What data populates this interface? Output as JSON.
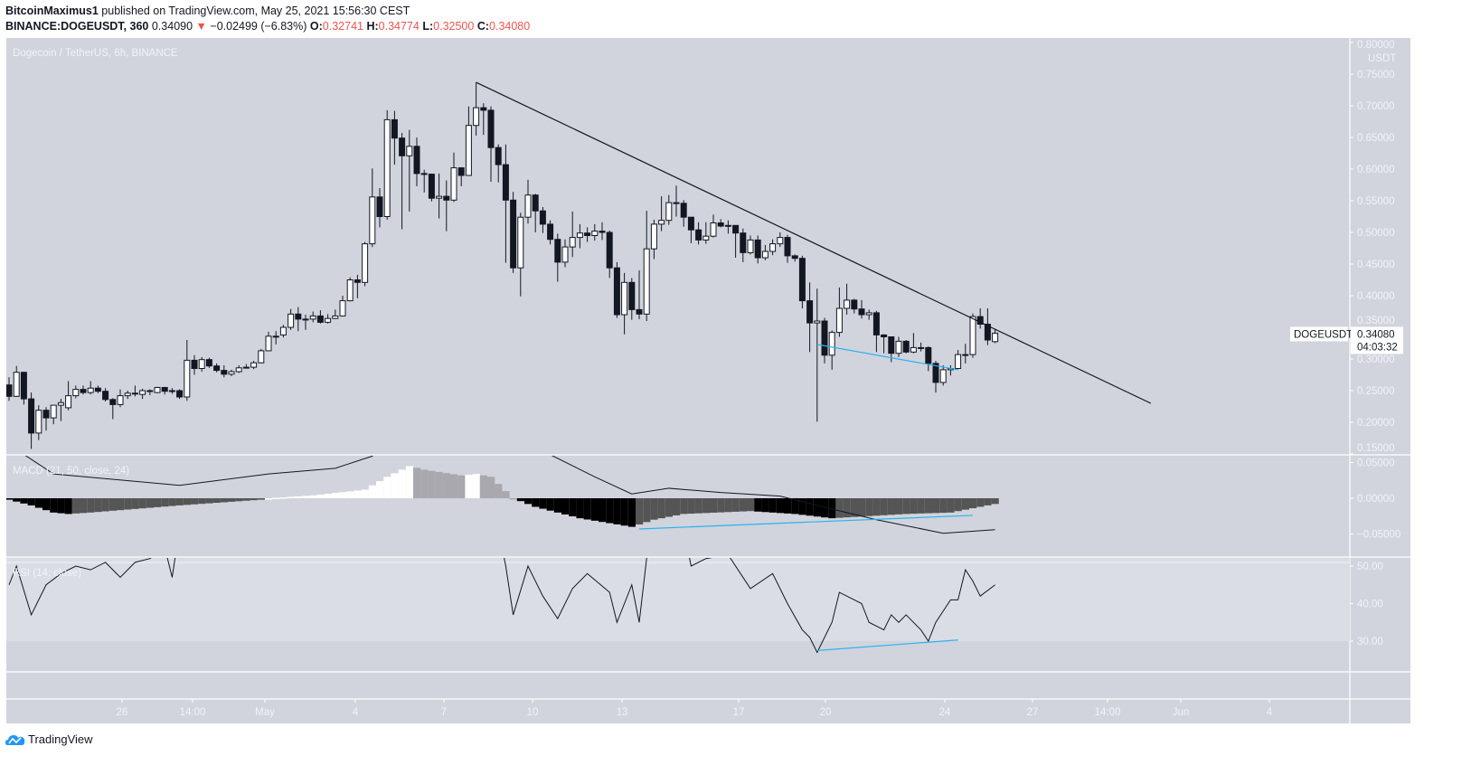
{
  "header": {
    "author": "BitcoinMaximus1",
    "published": "published on TradingView.com, May 25, 2021 15:56:30 CEST",
    "symbol": "BINANCE:DOGEUSDT, 360",
    "last": "0.34090",
    "change": "−0.02499 (−6.83%)",
    "o_label": "O:",
    "o": "0.32741",
    "h_label": "H:",
    "h": "0.34774",
    "l_label": "L:",
    "l": "0.32500",
    "c_label": "C:",
    "c": "0.34080"
  },
  "logo_text": "TradingView",
  "colors": {
    "background": "#d1d4dc",
    "up": "#ffffff",
    "down": "#131722",
    "accent_line": "#2ab3f0",
    "down_text": "#ef5350",
    "hist_falling": "#000000",
    "hist_rising_neg": "#555555",
    "hist_rising_pos": "#ffffff",
    "hist_falling_pos": "#a8a8ae"
  },
  "chart_data": [
    {
      "type": "candlestick",
      "title": "Dogecoin / TetherUS, 6h, BINANCE",
      "ylabel": "USDT",
      "ylim": [
        0.15,
        0.8
      ],
      "y_ticks": [
        "0.80000",
        "0.75000",
        "0.70000",
        "0.65000",
        "0.60000",
        "0.55000",
        "0.50000",
        "0.45000",
        "0.40000",
        "0.35000",
        "0.30000",
        "0.25000",
        "0.20000",
        "0.15000"
      ],
      "x_ticks": [
        "26",
        "14:00",
        "May",
        "4",
        "7",
        "10",
        "13",
        "17",
        "20",
        "24",
        "27",
        "14:00",
        "Jun",
        "4"
      ],
      "last_price_label": {
        "symbol": "DOGEUSDT",
        "price": "0.34080",
        "countdown": "04:03:32"
      },
      "ohlc": [
        [
          0.259,
          0.271,
          0.234,
          0.241
        ],
        [
          0.241,
          0.289,
          0.24,
          0.279
        ],
        [
          0.279,
          0.279,
          0.228,
          0.237
        ],
        [
          0.237,
          0.247,
          0.158,
          0.183
        ],
        [
          0.183,
          0.227,
          0.172,
          0.219
        ],
        [
          0.219,
          0.224,
          0.187,
          0.207
        ],
        [
          0.207,
          0.227,
          0.197,
          0.227
        ],
        [
          0.227,
          0.237,
          0.202,
          0.231
        ],
        [
          0.223,
          0.265,
          0.219,
          0.242
        ],
        [
          0.242,
          0.258,
          0.238,
          0.252
        ],
        [
          0.252,
          0.258,
          0.244,
          0.247
        ],
        [
          0.247,
          0.265,
          0.244,
          0.254
        ],
        [
          0.254,
          0.258,
          0.246,
          0.249
        ],
        [
          0.249,
          0.254,
          0.233,
          0.236
        ],
        [
          0.236,
          0.238,
          0.205,
          0.228
        ],
        [
          0.228,
          0.252,
          0.224,
          0.242
        ],
        [
          0.242,
          0.25,
          0.237,
          0.246
        ],
        [
          0.246,
          0.258,
          0.241,
          0.246
        ],
        [
          0.244,
          0.253,
          0.237,
          0.25
        ],
        [
          0.25,
          0.252,
          0.243,
          0.249
        ],
        [
          0.247,
          0.256,
          0.246,
          0.255
        ],
        [
          0.255,
          0.256,
          0.244,
          0.249
        ],
        [
          0.249,
          0.254,
          0.245,
          0.25
        ],
        [
          0.25,
          0.252,
          0.237,
          0.24
        ],
        [
          0.24,
          0.33,
          0.234,
          0.298
        ],
        [
          0.298,
          0.306,
          0.275,
          0.285
        ],
        [
          0.285,
          0.303,
          0.28,
          0.299
        ],
        [
          0.299,
          0.302,
          0.286,
          0.289
        ],
        [
          0.289,
          0.293,
          0.279,
          0.282
        ],
        [
          0.282,
          0.29,
          0.271,
          0.276
        ],
        [
          0.276,
          0.283,
          0.273,
          0.28
        ],
        [
          0.28,
          0.29,
          0.278,
          0.286
        ],
        [
          0.286,
          0.292,
          0.285,
          0.287
        ],
        [
          0.287,
          0.297,
          0.284,
          0.294
        ],
        [
          0.294,
          0.316,
          0.293,
          0.313
        ],
        [
          0.313,
          0.343,
          0.316,
          0.336
        ],
        [
          0.336,
          0.344,
          0.323,
          0.336
        ],
        [
          0.338,
          0.354,
          0.334,
          0.35
        ],
        [
          0.35,
          0.379,
          0.346,
          0.371
        ],
        [
          0.371,
          0.382,
          0.344,
          0.363
        ],
        [
          0.363,
          0.37,
          0.346,
          0.363
        ],
        [
          0.363,
          0.375,
          0.358,
          0.368
        ],
        [
          0.368,
          0.377,
          0.356,
          0.358
        ],
        [
          0.358,
          0.371,
          0.356,
          0.364
        ],
        [
          0.364,
          0.378,
          0.363,
          0.368
        ],
        [
          0.368,
          0.4,
          0.367,
          0.392
        ],
        [
          0.392,
          0.429,
          0.391,
          0.425
        ],
        [
          0.425,
          0.433,
          0.396,
          0.421
        ],
        [
          0.421,
          0.485,
          0.415,
          0.482
        ],
        [
          0.482,
          0.601,
          0.477,
          0.556
        ],
        [
          0.556,
          0.57,
          0.508,
          0.525
        ],
        [
          0.525,
          0.693,
          0.52,
          0.678
        ],
        [
          0.678,
          0.692,
          0.607,
          0.649
        ],
        [
          0.649,
          0.657,
          0.505,
          0.621
        ],
        [
          0.621,
          0.662,
          0.533,
          0.636
        ],
        [
          0.636,
          0.65,
          0.573,
          0.593
        ],
        [
          0.593,
          0.599,
          0.563,
          0.592
        ],
        [
          0.592,
          0.593,
          0.549,
          0.554
        ],
        [
          0.554,
          0.593,
          0.522,
          0.557
        ],
        [
          0.557,
          0.582,
          0.502,
          0.551
        ],
        [
          0.551,
          0.626,
          0.548,
          0.602
        ],
        [
          0.602,
          0.603,
          0.573,
          0.59
        ],
        [
          0.59,
          0.699,
          0.59,
          0.669
        ],
        [
          0.669,
          0.737,
          0.653,
          0.697
        ],
        [
          0.697,
          0.704,
          0.654,
          0.693
        ],
        [
          0.693,
          0.699,
          0.58,
          0.634
        ],
        [
          0.634,
          0.639,
          0.579,
          0.607
        ],
        [
          0.607,
          0.639,
          0.452,
          0.551
        ],
        [
          0.551,
          0.564,
          0.436,
          0.444
        ],
        [
          0.444,
          0.531,
          0.399,
          0.524
        ],
        [
          0.524,
          0.583,
          0.514,
          0.559
        ],
        [
          0.559,
          0.561,
          0.5,
          0.534
        ],
        [
          0.534,
          0.54,
          0.499,
          0.513
        ],
        [
          0.513,
          0.519,
          0.481,
          0.489
        ],
        [
          0.489,
          0.498,
          0.422,
          0.453
        ],
        [
          0.453,
          0.489,
          0.445,
          0.477
        ],
        [
          0.477,
          0.533,
          0.461,
          0.492
        ],
        [
          0.492,
          0.513,
          0.475,
          0.499
        ],
        [
          0.499,
          0.508,
          0.485,
          0.495
        ],
        [
          0.495,
          0.513,
          0.487,
          0.502
        ],
        [
          0.502,
          0.516,
          0.488,
          0.5
        ],
        [
          0.5,
          0.503,
          0.428,
          0.444
        ],
        [
          0.444,
          0.453,
          0.365,
          0.37
        ],
        [
          0.37,
          0.436,
          0.339,
          0.421
        ],
        [
          0.421,
          0.428,
          0.362,
          0.378
        ],
        [
          0.378,
          0.44,
          0.363,
          0.371
        ],
        [
          0.371,
          0.534,
          0.36,
          0.474
        ],
        [
          0.474,
          0.52,
          0.458,
          0.513
        ],
        [
          0.513,
          0.557,
          0.502,
          0.519
        ],
        [
          0.519,
          0.559,
          0.512,
          0.547
        ],
        [
          0.547,
          0.574,
          0.525,
          0.546
        ],
        [
          0.546,
          0.551,
          0.509,
          0.524
        ],
        [
          0.524,
          0.524,
          0.483,
          0.504
        ],
        [
          0.504,
          0.516,
          0.481,
          0.488
        ],
        [
          0.488,
          0.516,
          0.482,
          0.494
        ],
        [
          0.494,
          0.528,
          0.492,
          0.515
        ],
        [
          0.515,
          0.521,
          0.508,
          0.51
        ],
        [
          0.51,
          0.519,
          0.498,
          0.511
        ],
        [
          0.511,
          0.511,
          0.46,
          0.499
        ],
        [
          0.499,
          0.506,
          0.453,
          0.468
        ],
        [
          0.468,
          0.495,
          0.465,
          0.488
        ],
        [
          0.488,
          0.495,
          0.451,
          0.46
        ],
        [
          0.46,
          0.48,
          0.456,
          0.47
        ],
        [
          0.47,
          0.489,
          0.464,
          0.482
        ],
        [
          0.482,
          0.5,
          0.477,
          0.492
        ],
        [
          0.492,
          0.496,
          0.452,
          0.463
        ],
        [
          0.463,
          0.465,
          0.454,
          0.459
        ],
        [
          0.459,
          0.463,
          0.38,
          0.392
        ],
        [
          0.392,
          0.421,
          0.311,
          0.357
        ],
        [
          0.357,
          0.411,
          0.201,
          0.36
        ],
        [
          0.36,
          0.365,
          0.293,
          0.306
        ],
        [
          0.306,
          0.345,
          0.283,
          0.342
        ],
        [
          0.342,
          0.413,
          0.335,
          0.38
        ],
        [
          0.38,
          0.419,
          0.37,
          0.393
        ],
        [
          0.393,
          0.395,
          0.372,
          0.379
        ],
        [
          0.379,
          0.393,
          0.364,
          0.37
        ],
        [
          0.37,
          0.378,
          0.362,
          0.373
        ],
        [
          0.373,
          0.376,
          0.311,
          0.338
        ],
        [
          0.338,
          0.339,
          0.309,
          0.335
        ],
        [
          0.335,
          0.335,
          0.295,
          0.309
        ],
        [
          0.309,
          0.335,
          0.303,
          0.328
        ],
        [
          0.328,
          0.33,
          0.309,
          0.311
        ],
        [
          0.311,
          0.341,
          0.309,
          0.318
        ],
        [
          0.318,
          0.326,
          0.312,
          0.318
        ],
        [
          0.318,
          0.32,
          0.281,
          0.293
        ],
        [
          0.293,
          0.297,
          0.247,
          0.263
        ],
        [
          0.263,
          0.29,
          0.258,
          0.283
        ],
        [
          0.283,
          0.29,
          0.274,
          0.285
        ],
        [
          0.285,
          0.314,
          0.284,
          0.307
        ],
        [
          0.307,
          0.324,
          0.293,
          0.307
        ],
        [
          0.307,
          0.372,
          0.302,
          0.367
        ],
        [
          0.367,
          0.38,
          0.348,
          0.355
        ],
        [
          0.355,
          0.38,
          0.322,
          0.33
        ],
        [
          0.32741,
          0.34774,
          0.325,
          0.3408
        ]
      ],
      "trendlines": [
        {
          "color": "#131722",
          "from": [
            64,
            0.737
          ],
          "to": [
            155,
            0.23
          ]
        },
        {
          "color": "#2ab3f0",
          "from": [
            110,
            0.323
          ],
          "to": [
            129,
            0.283
          ]
        }
      ]
    },
    {
      "type": "bar+line",
      "title": "MACD (21, 50, close, 24)",
      "ylim": [
        -0.07,
        0.065
      ],
      "y_ticks": [
        "0.05000",
        "0.00000",
        "−0.05000"
      ],
      "histogram_points": [
        [
          1,
          -0.002
        ],
        [
          4,
          -0.01
        ],
        [
          7,
          -0.02
        ],
        [
          9,
          -0.022
        ],
        [
          12,
          -0.02
        ],
        [
          24,
          -0.01
        ],
        [
          35,
          -0.002
        ],
        [
          36,
          0.0
        ],
        [
          42,
          0.004
        ],
        [
          49,
          0.012
        ],
        [
          52,
          0.03
        ],
        [
          55,
          0.045
        ],
        [
          57,
          0.04
        ],
        [
          62,
          0.032
        ],
        [
          64,
          0.034
        ],
        [
          66,
          0.03
        ],
        [
          69,
          0.0
        ],
        [
          72,
          -0.012
        ],
        [
          78,
          -0.028
        ],
        [
          85,
          -0.04
        ],
        [
          88,
          -0.03
        ],
        [
          92,
          -0.022
        ],
        [
          101,
          -0.018
        ],
        [
          107,
          -0.022
        ],
        [
          112,
          -0.028
        ],
        [
          117,
          -0.025
        ],
        [
          122,
          -0.022
        ],
        [
          128,
          -0.02
        ],
        [
          134,
          -0.008
        ]
      ],
      "line_points": [
        [
          1,
          0.075
        ],
        [
          7,
          0.034
        ],
        [
          24,
          0.018
        ],
        [
          36,
          0.034
        ],
        [
          45,
          0.042
        ],
        [
          50,
          0.059
        ],
        [
          52,
          0.08
        ],
        [
          72,
          0.08
        ],
        [
          74,
          0.061
        ],
        [
          80,
          0.03
        ],
        [
          85,
          0.006
        ],
        [
          90,
          0.014
        ],
        [
          97,
          0.008
        ],
        [
          105,
          0.003
        ],
        [
          112,
          -0.015
        ],
        [
          118,
          -0.03
        ],
        [
          127,
          -0.049
        ],
        [
          134,
          -0.044
        ]
      ],
      "trendline": {
        "color": "#2ab3f0",
        "from": [
          86,
          -0.043
        ],
        "to": [
          131,
          -0.024
        ]
      }
    },
    {
      "type": "line",
      "title": "RSI (14, close)",
      "ylim": [
        20,
        52
      ],
      "y_ticks": [
        "50.00",
        "40.00",
        "30.00"
      ],
      "band": [
        30,
        70
      ],
      "points": [
        [
          1,
          45
        ],
        [
          2,
          50
        ],
        [
          4,
          37
        ],
        [
          6,
          45
        ],
        [
          8,
          48
        ],
        [
          10,
          50
        ],
        [
          12,
          49
        ],
        [
          14,
          51
        ],
        [
          16,
          47
        ],
        [
          18,
          51
        ],
        [
          20,
          52
        ],
        [
          22,
          55
        ],
        [
          23,
          47
        ],
        [
          24,
          60
        ],
        [
          67,
          60
        ],
        [
          68,
          50
        ],
        [
          69,
          37
        ],
        [
          71,
          50
        ],
        [
          73,
          42
        ],
        [
          75,
          36
        ],
        [
          77,
          44
        ],
        [
          79,
          48
        ],
        [
          82,
          43
        ],
        [
          83,
          35
        ],
        [
          85,
          45
        ],
        [
          86,
          35
        ],
        [
          87,
          52
        ],
        [
          88,
          60
        ],
        [
          92,
          60
        ],
        [
          93,
          50
        ],
        [
          95,
          52
        ],
        [
          98,
          53
        ],
        [
          100,
          47
        ],
        [
          101,
          44
        ],
        [
          104,
          48
        ],
        [
          106,
          40
        ],
        [
          108,
          33
        ],
        [
          109,
          31
        ],
        [
          110,
          27
        ],
        [
          112,
          35
        ],
        [
          113,
          43
        ],
        [
          115,
          41
        ],
        [
          116,
          40
        ],
        [
          117,
          35
        ],
        [
          119,
          33
        ],
        [
          120,
          37
        ],
        [
          121,
          35
        ],
        [
          122,
          37
        ],
        [
          124,
          33
        ],
        [
          125,
          30
        ],
        [
          126,
          35
        ],
        [
          128,
          41
        ],
        [
          129,
          41
        ],
        [
          130,
          49
        ],
        [
          131,
          46
        ],
        [
          132,
          42
        ],
        [
          134,
          45
        ]
      ],
      "trendline": {
        "color": "#2ab3f0",
        "from": [
          110,
          27.5
        ],
        "to": [
          129,
          30.3
        ]
      }
    }
  ]
}
